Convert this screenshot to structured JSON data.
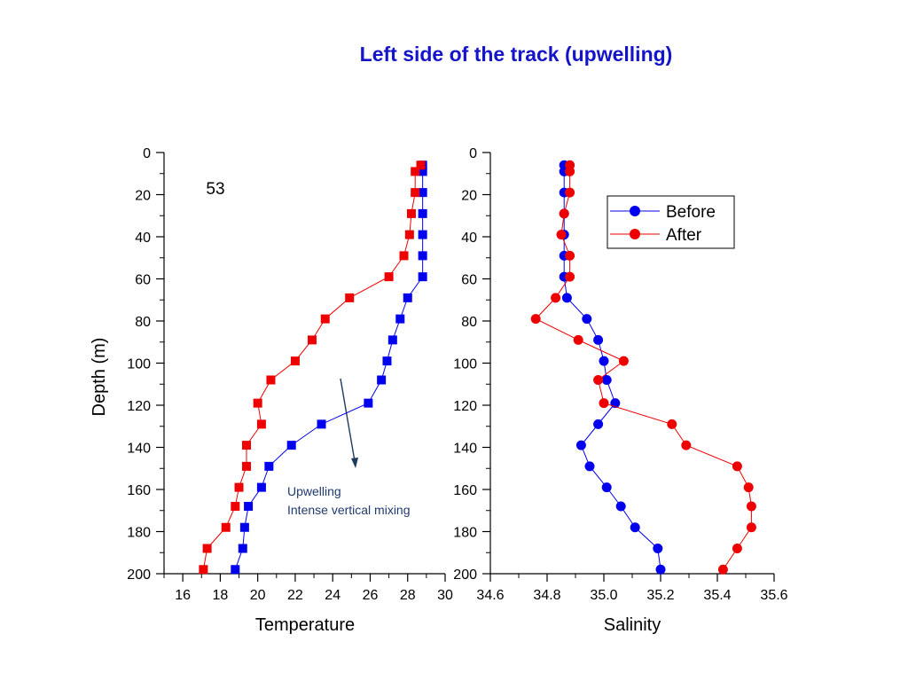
{
  "title": "Left side of the track (upwelling)",
  "chart_data": [
    {
      "type": "line",
      "title": "",
      "xlabel": "Temperature",
      "ylabel": "Depth (m)",
      "xlim": [
        15,
        30
      ],
      "ylim": [
        200,
        0
      ],
      "x_ticks": [
        "16",
        "18",
        "20",
        "22",
        "24",
        "26",
        "28",
        "30"
      ],
      "y_ticks": [
        "0",
        "20",
        "40",
        "60",
        "80",
        "100",
        "120",
        "140",
        "160",
        "180",
        "200"
      ],
      "panel_label": "53",
      "annotation": [
        "Upwelling",
        "Intense vertical mixing"
      ],
      "series": [
        {
          "name": "Before",
          "color": "#0000ee",
          "marker": "square",
          "points": [
            [
              28.8,
              6
            ],
            [
              28.8,
              9
            ],
            [
              28.8,
              19
            ],
            [
              28.8,
              29
            ],
            [
              28.8,
              39
            ],
            [
              28.8,
              49
            ],
            [
              28.8,
              59
            ],
            [
              28.0,
              69
            ],
            [
              27.6,
              79
            ],
            [
              27.2,
              89
            ],
            [
              26.9,
              99
            ],
            [
              26.6,
              108
            ],
            [
              25.9,
              119
            ],
            [
              23.4,
              129
            ],
            [
              21.8,
              139
            ],
            [
              20.6,
              149
            ],
            [
              20.2,
              159
            ],
            [
              19.5,
              168
            ],
            [
              19.3,
              178
            ],
            [
              19.2,
              188
            ],
            [
              18.8,
              198
            ]
          ]
        },
        {
          "name": "After",
          "color": "#ee0000",
          "marker": "square",
          "points": [
            [
              28.7,
              6
            ],
            [
              28.4,
              9
            ],
            [
              28.4,
              19
            ],
            [
              28.2,
              29
            ],
            [
              28.1,
              39
            ],
            [
              27.8,
              49
            ],
            [
              27.0,
              59
            ],
            [
              24.9,
              69
            ],
            [
              23.6,
              79
            ],
            [
              22.9,
              89
            ],
            [
              22.0,
              99
            ],
            [
              20.7,
              108
            ],
            [
              20.0,
              119
            ],
            [
              20.2,
              129
            ],
            [
              19.4,
              139
            ],
            [
              19.4,
              149
            ],
            [
              19.0,
              159
            ],
            [
              18.8,
              168
            ],
            [
              18.3,
              178
            ],
            [
              17.3,
              188
            ],
            [
              17.1,
              198
            ]
          ]
        }
      ]
    },
    {
      "type": "line",
      "title": "",
      "xlabel": "Salinity",
      "ylabel": "",
      "xlim": [
        34.6,
        35.6
      ],
      "ylim": [
        200,
        0
      ],
      "x_ticks": [
        "34.6",
        "34.8",
        "35.0",
        "35.2",
        "35.4",
        "35.6"
      ],
      "y_ticks": [
        "0",
        "20",
        "40",
        "60",
        "80",
        "100",
        "120",
        "140",
        "160",
        "180",
        "200"
      ],
      "legend_position": "top-right",
      "series": [
        {
          "name": "Before",
          "color": "#0000ee",
          "marker": "circle",
          "points": [
            [
              34.86,
              6
            ],
            [
              34.86,
              9
            ],
            [
              34.86,
              19
            ],
            [
              34.86,
              29
            ],
            [
              34.86,
              39
            ],
            [
              34.86,
              49
            ],
            [
              34.86,
              59
            ],
            [
              34.87,
              69
            ],
            [
              34.94,
              79
            ],
            [
              34.98,
              89
            ],
            [
              35.0,
              99
            ],
            [
              35.01,
              108
            ],
            [
              35.04,
              119
            ],
            [
              34.98,
              129
            ],
            [
              34.92,
              139
            ],
            [
              34.95,
              149
            ],
            [
              35.01,
              159
            ],
            [
              35.06,
              168
            ],
            [
              35.11,
              178
            ],
            [
              35.19,
              188
            ],
            [
              35.2,
              198
            ]
          ]
        },
        {
          "name": "After",
          "color": "#ee0000",
          "marker": "circle",
          "points": [
            [
              34.88,
              6
            ],
            [
              34.88,
              9
            ],
            [
              34.88,
              19
            ],
            [
              34.86,
              29
            ],
            [
              34.85,
              39
            ],
            [
              34.88,
              49
            ],
            [
              34.88,
              59
            ],
            [
              34.83,
              69
            ],
            [
              34.76,
              79
            ],
            [
              34.91,
              89
            ],
            [
              35.07,
              99
            ],
            [
              34.98,
              108
            ],
            [
              35.0,
              119
            ],
            [
              35.24,
              129
            ],
            [
              35.29,
              139
            ],
            [
              35.47,
              149
            ],
            [
              35.51,
              159
            ],
            [
              35.52,
              168
            ],
            [
              35.52,
              178
            ],
            [
              35.47,
              188
            ],
            [
              35.42,
              198
            ]
          ]
        }
      ]
    }
  ]
}
